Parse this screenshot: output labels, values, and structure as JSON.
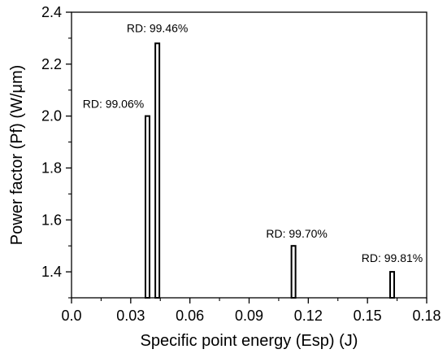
{
  "chart_data": {
    "type": "bar",
    "xlabel": "Specific point energy (Esp) (J)",
    "ylabel": "Power factor (Pf) (W/μm)",
    "xlim": [
      0.0,
      0.18
    ],
    "ylim": [
      1.3,
      2.4
    ],
    "xticks": [
      0.0,
      0.03,
      0.06,
      0.09,
      0.12,
      0.15,
      0.18
    ],
    "xtick_labels": [
      "0.0",
      "0.03",
      "0.06",
      "0.09",
      "0.12",
      "0.15",
      "0.18"
    ],
    "yticks": [
      1.4,
      1.6,
      1.8,
      2.0,
      2.2,
      2.4
    ],
    "ytick_labels": [
      "1.4",
      "1.6",
      "1.8",
      "2.0",
      "2.2",
      "2.4"
    ],
    "grid": false,
    "bars": [
      {
        "x": 0.0385,
        "value": 2.0,
        "label": "RD: 99.06%"
      },
      {
        "x": 0.0435,
        "value": 2.28,
        "label": "RD: 99.46%"
      },
      {
        "x": 0.1125,
        "value": 1.5,
        "label": "RD: 99.70%"
      },
      {
        "x": 0.1625,
        "value": 1.4,
        "label": "RD: 99.81%"
      }
    ],
    "bar_color": "#ffffff",
    "edge_color": "#000000"
  }
}
